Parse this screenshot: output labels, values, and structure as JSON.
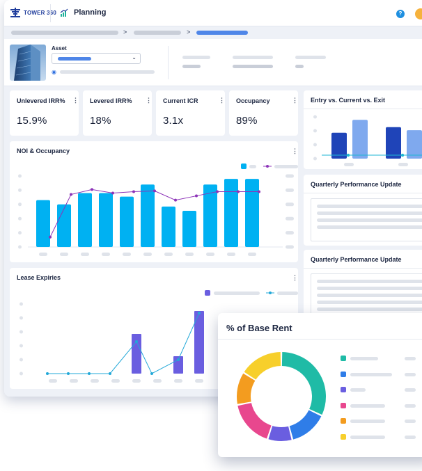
{
  "header": {
    "logo_text": "TOWER 360",
    "app_name": "Planning",
    "help_label": "?"
  },
  "breadcrumb": {
    "separator": ">"
  },
  "asset": {
    "label": "Asset"
  },
  "kpis": [
    {
      "title": "Unlevered IRR%",
      "value": "15.9%"
    },
    {
      "title": "Levered IRR%",
      "value": "18%"
    },
    {
      "title": "Current ICR",
      "value": "3.1x"
    },
    {
      "title": "Occupancy",
      "value": "89%"
    }
  ],
  "cards": {
    "noi_title": "NOI & Occupancy",
    "lease_title": "Lease Expiries",
    "entry_title": "Entry vs. Current vs. Exit",
    "update1_title": "Quarterly Performance Update",
    "update2_title": "Quarterly Performance Update",
    "rent_title": "% of Base Rent"
  },
  "colors": {
    "bar_blue": "#00b1f2",
    "line_purple": "#8c33b8",
    "bar_violet": "#6a5ee0",
    "line_cyan": "#22a8d8",
    "entry_navy": "#1f44b8",
    "entry_light": "#7fa9ee",
    "entry_line": "#1fb7d4"
  },
  "chart_data": [
    {
      "type": "bar",
      "name_ref": "NOI & Occupancy",
      "values": [
        0.66,
        0.6,
        0.76,
        0.76,
        0.71,
        0.88,
        0.57,
        0.51,
        0.88,
        0.96,
        0.96
      ],
      "line": [
        0.14,
        0.74,
        0.81,
        0.76,
        0.78,
        0.79,
        0.66,
        0.72,
        0.78,
        0.78,
        0.78
      ]
    },
    {
      "type": "bar",
      "name_ref": "Lease Expiries",
      "values": [
        0,
        0,
        0,
        0,
        0.57,
        0,
        0.25,
        0.9
      ],
      "line": [
        0,
        0,
        0,
        0,
        0.46,
        0,
        0.2,
        0.87
      ]
    },
    {
      "type": "bar",
      "name_ref": "Entry vs. Current vs. Exit",
      "groups": [
        [
          0.6,
          0.9
        ],
        [
          0.73,
          0.66
        ]
      ],
      "line": [
        0.08,
        0.08,
        0.08,
        0.08
      ]
    },
    {
      "type": "pie",
      "name_ref": "% of Base Rent",
      "values": [
        0.32,
        0.14,
        0.09,
        0.17,
        0.12,
        0.16
      ],
      "colors": [
        "#1fbba6",
        "#2f7de8",
        "#6a5ee0",
        "#e8478e",
        "#f39c1f",
        "#f7cf2b"
      ]
    }
  ]
}
